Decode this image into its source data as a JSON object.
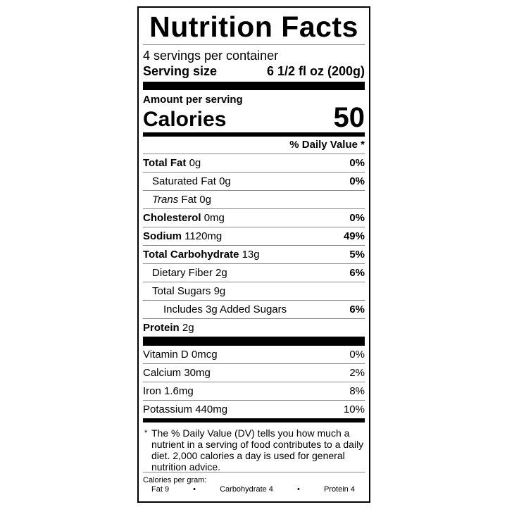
{
  "title": "Nutrition Facts",
  "servings_per_container": "4 servings per container",
  "serving_size": {
    "label": "Serving size",
    "value": "6 1/2 fl oz (200g)"
  },
  "amount_per_serving": "Amount per serving",
  "calories": {
    "label": "Calories",
    "value": "50"
  },
  "daily_value_header": "% Daily Value *",
  "nutrients": [
    {
      "name": "Total Fat",
      "amount": "0g",
      "dv": "0%"
    },
    {
      "name": "Saturated Fat",
      "amount": "0g",
      "dv": "0%"
    },
    {
      "name": "Trans",
      "name_suffix": "Fat",
      "amount": "0g",
      "dv": ""
    },
    {
      "name": "Cholesterol",
      "amount": "0mg",
      "dv": "0%"
    },
    {
      "name": "Sodium",
      "amount": "1120mg",
      "dv": "49%"
    },
    {
      "name": "Total Carbohydrate",
      "amount": "13g",
      "dv": "5%"
    },
    {
      "name": "Dietary Fiber",
      "amount": "2g",
      "dv": "6%"
    },
    {
      "name": "Total Sugars",
      "amount": "9g",
      "dv": ""
    },
    {
      "name": "Includes 3g Added Sugars",
      "amount": "",
      "dv": "6%"
    },
    {
      "name": "Protein",
      "amount": "2g",
      "dv": ""
    }
  ],
  "vitamins": [
    {
      "text": "Vitamin D 0mcg",
      "dv": "0%"
    },
    {
      "text": "Calcium 30mg",
      "dv": "2%"
    },
    {
      "text": "Iron 1.6mg",
      "dv": "8%"
    },
    {
      "text": "Potassium 440mg",
      "dv": "10%"
    }
  ],
  "footnote": {
    "star": "*",
    "text": "The % Daily Value (DV) tells you how much a nutrient in a serving of food contributes to a daily diet. 2,000 calories a day is used for general nutrition advice."
  },
  "calories_per_gram": {
    "label": "Calories per gram:",
    "fat": "Fat 9",
    "bullet": "•",
    "carb": "Carbohydrate 4",
    "protein": "Protein 4"
  }
}
